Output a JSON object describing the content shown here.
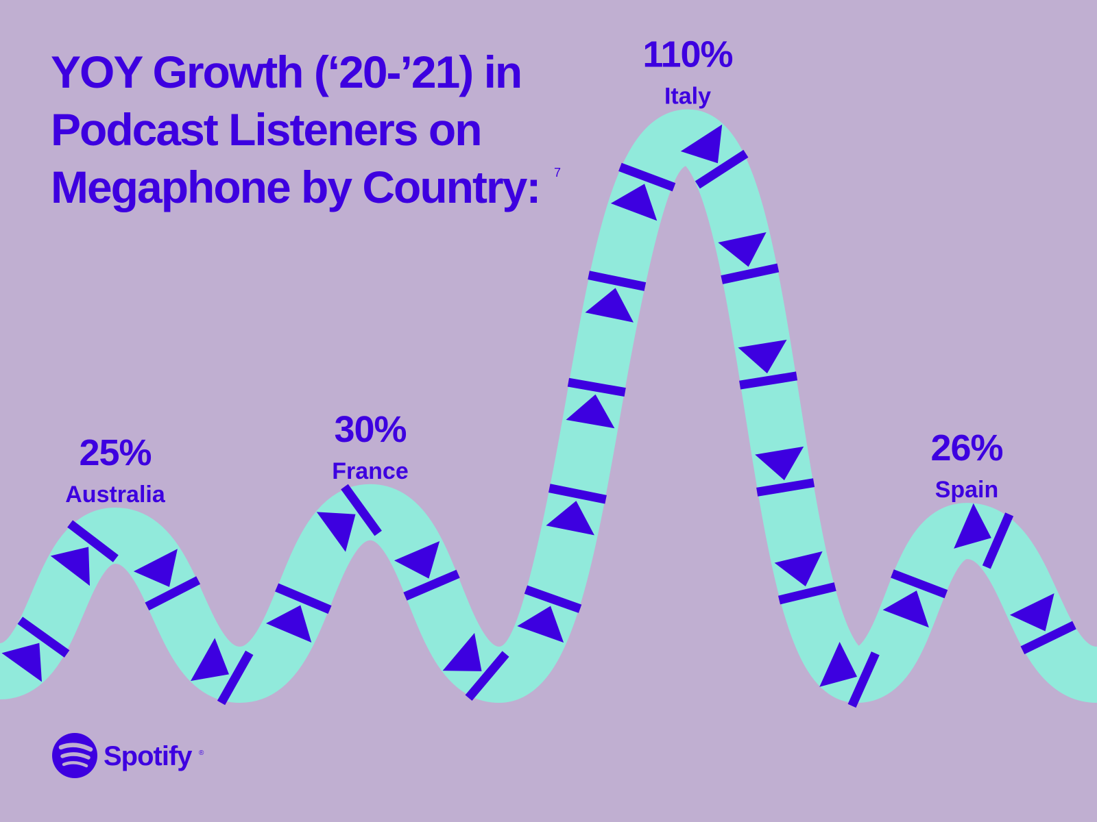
{
  "colors": {
    "background": "#C0AFD1",
    "accent": "#3D00E0",
    "ribbon": "#91EADB"
  },
  "title": {
    "lines": [
      "YOY Growth (‘20-’21) in",
      "Podcast Listeners on",
      "Megaphone by Country:"
    ],
    "footnote": "7"
  },
  "chart_data": {
    "type": "line",
    "title": "YOY Growth (‘20-’21) in Podcast Listeners on Megaphone by Country:",
    "categories": [
      "Australia",
      "France",
      "Italy",
      "Spain"
    ],
    "values": [
      25,
      30,
      110,
      26
    ],
    "value_labels": [
      "25%",
      "30%",
      "110%",
      "26%"
    ],
    "unit": "%",
    "grid": false,
    "legend": "none"
  },
  "logo": {
    "name": "Spotify",
    "registered": "®",
    "icon": "spotify-logo-icon"
  }
}
